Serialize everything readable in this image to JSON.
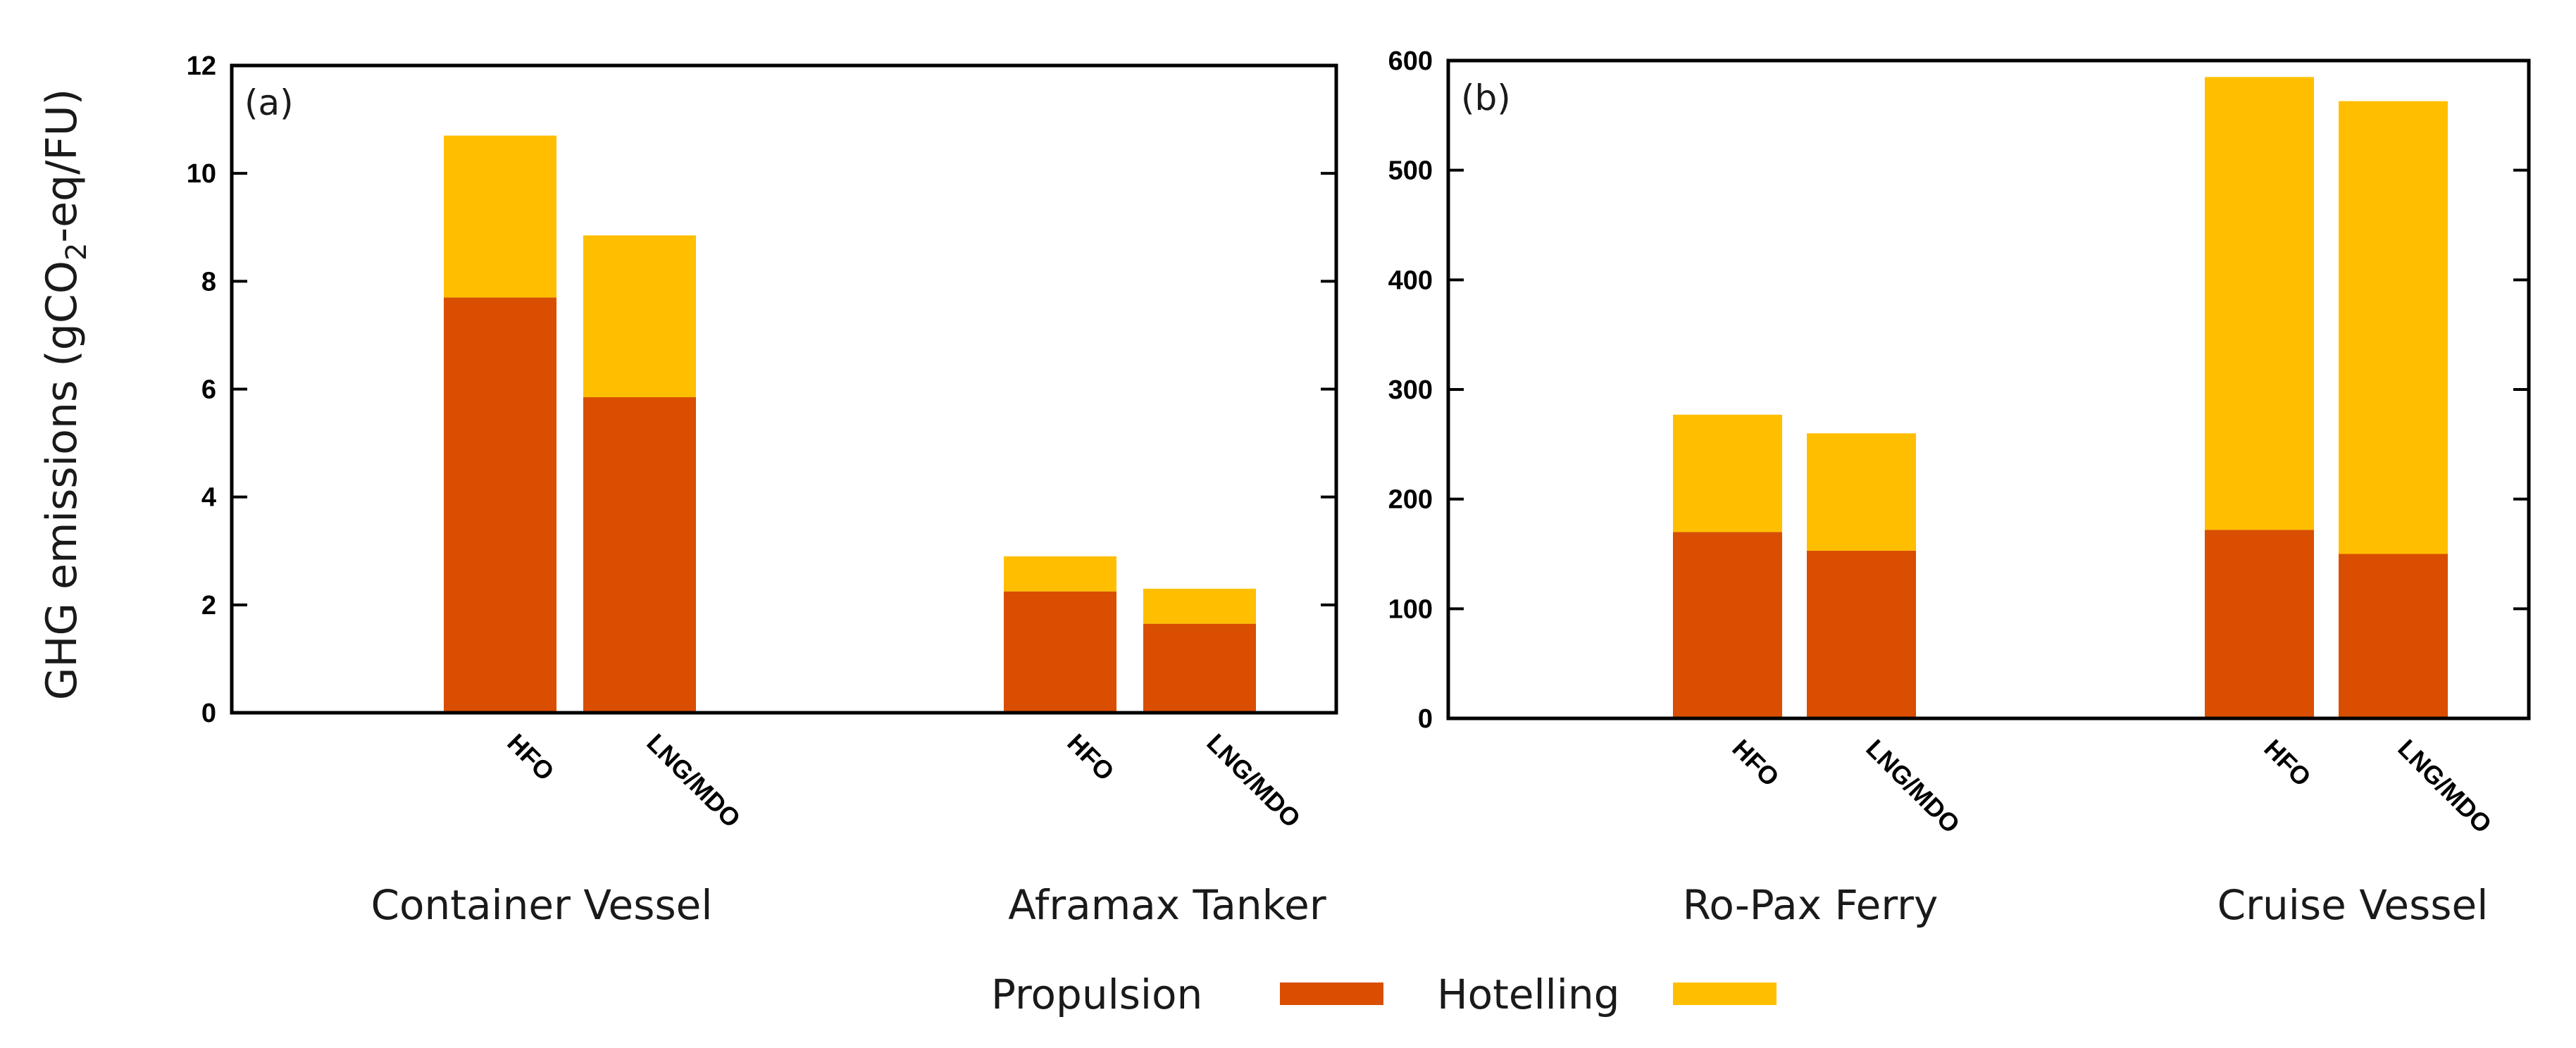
{
  "chart_data": [
    {
      "type": "bar",
      "stacked": true,
      "panel_label": "(a)",
      "ylabel_parts": [
        "GHG emissions (gCO",
        "2",
        "-eq/FU)"
      ],
      "ylim": [
        0,
        12
      ],
      "yticks": [
        "0",
        "2",
        "4",
        "6",
        "8",
        "10",
        "12"
      ],
      "groups": [
        {
          "name": "Container Vessel",
          "categories": [
            "HFO",
            "LNG/MDO"
          ]
        },
        {
          "name": "Aframax Tanker",
          "categories": [
            "HFO",
            "LNG/MDO"
          ]
        }
      ],
      "series": [
        {
          "name": "Propulsion",
          "color": "#d94e00",
          "values": [
            7.7,
            5.85,
            2.25,
            1.65
          ]
        },
        {
          "name": "Hotelling",
          "color": "#ffbf00",
          "values": [
            3.0,
            3.0,
            0.65,
            0.65
          ]
        }
      ]
    },
    {
      "type": "bar",
      "stacked": true,
      "panel_label": "(b)",
      "ylim": [
        0,
        600
      ],
      "yticks": [
        "0",
        "100",
        "200",
        "300",
        "400",
        "500",
        "600"
      ],
      "groups": [
        {
          "name": "Ro-Pax Ferry",
          "categories": [
            "HFO",
            "LNG/MDO"
          ]
        },
        {
          "name": "Cruise Vessel",
          "categories": [
            "HFO",
            "LNG/MDO"
          ]
        }
      ],
      "series": [
        {
          "name": "Propulsion",
          "color": "#d94e00",
          "values": [
            170,
            153,
            172,
            150
          ]
        },
        {
          "name": "Hotelling",
          "color": "#ffbf00",
          "values": [
            107,
            107,
            413,
            413
          ]
        }
      ]
    }
  ],
  "legend": {
    "position": "bottom-center",
    "items": [
      {
        "label": "Propulsion",
        "color": "#d94e00"
      },
      {
        "label": "Hotelling",
        "color": "#ffbf00"
      }
    ]
  }
}
